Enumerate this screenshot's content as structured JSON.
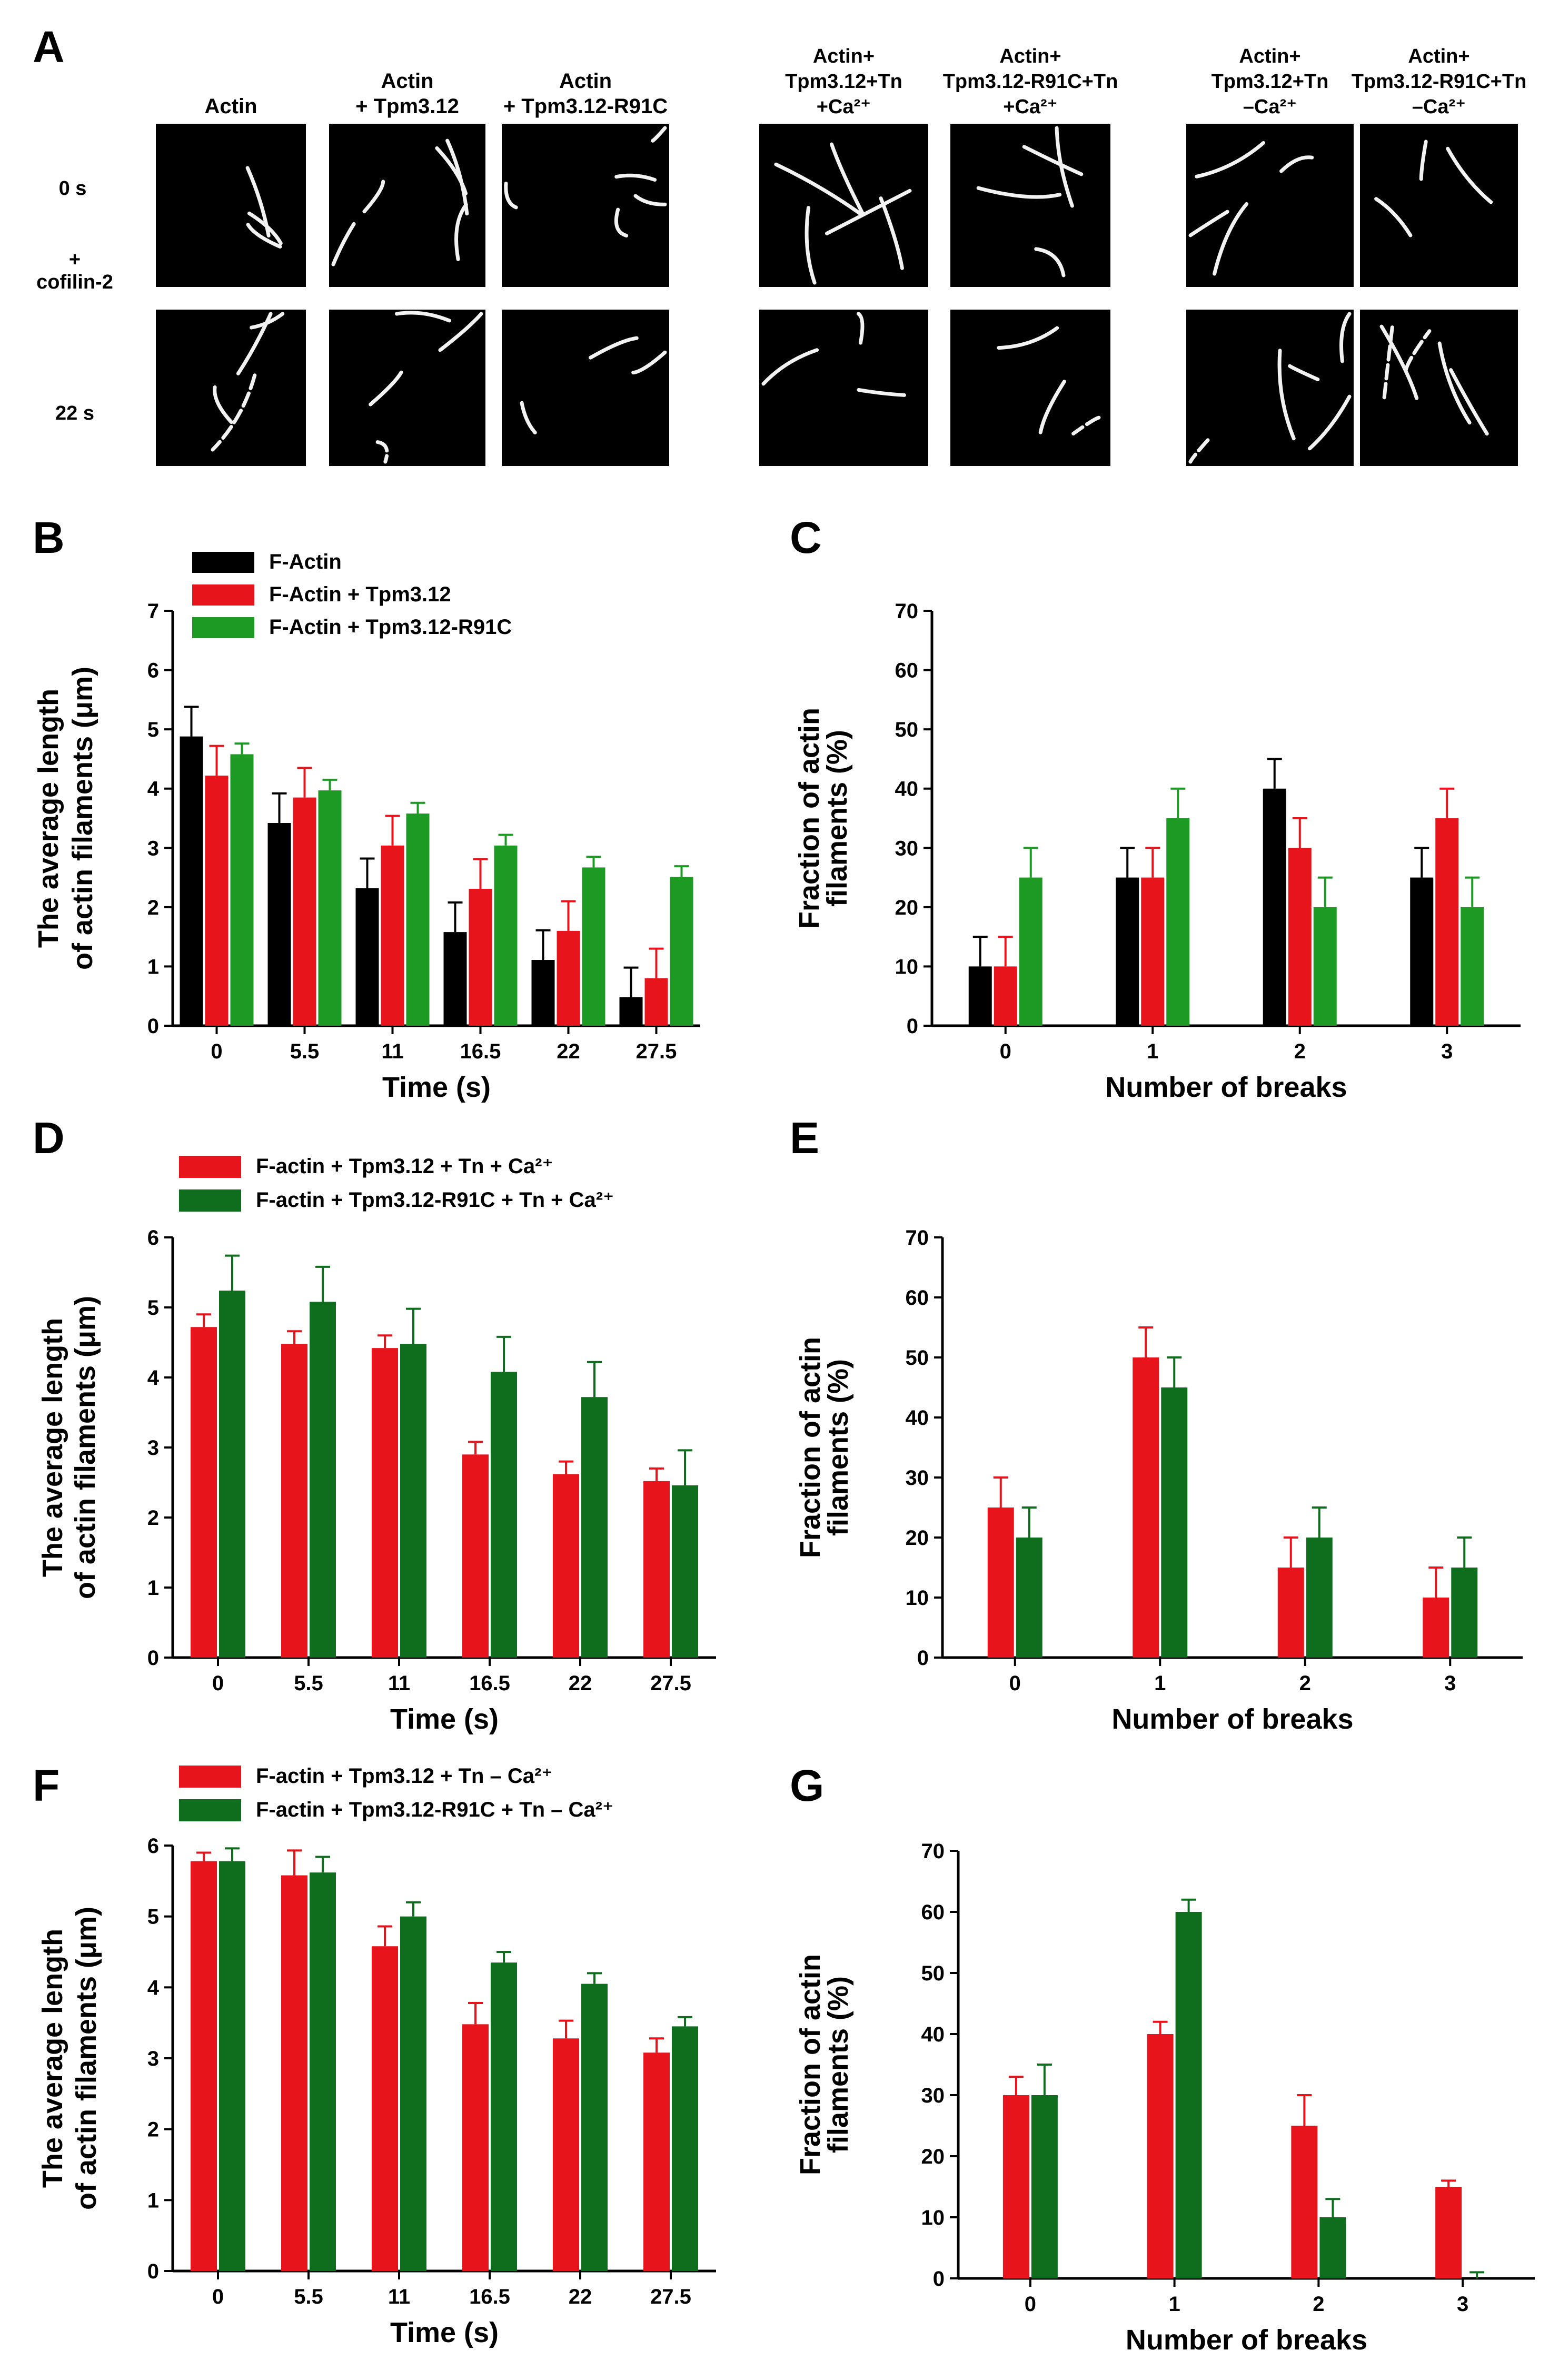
{
  "colors": {
    "black": "#000000",
    "red": "#e8141b",
    "green": "#1d9a24",
    "dark_green": "#0f6e1e"
  },
  "panel_a": {
    "label": "A",
    "columns": [
      [
        "Actin"
      ],
      [
        "Actin",
        "+ Tpm3.12"
      ],
      [
        "Actin",
        "+ Tpm3.12-R91C"
      ],
      [
        "Actin+",
        "Tpm3.12+Tn",
        "+Ca²⁺"
      ],
      [
        "Actin+",
        "Tpm3.12-R91C+Tn",
        "+Ca²⁺"
      ],
      [
        "Actin+",
        "Tpm3.12+Tn",
        "–Ca²⁺"
      ],
      [
        "Actin+",
        "Tpm3.12-R91C+Tn",
        "–Ca²⁺"
      ]
    ],
    "row_labels": {
      "top": "0 s",
      "middle_1": "+",
      "middle_2": "cofilin-2",
      "bottom": "22 s"
    },
    "micrograph_icon": "actin-filament-micrograph"
  },
  "chart_data": [
    {
      "id": "B",
      "panel_label": "B",
      "type": "bar",
      "categories": [
        "0",
        "5.5",
        "11",
        "16.5",
        "22",
        "27.5"
      ],
      "series": [
        {
          "name": "F-Actin",
          "color": "#000000",
          "values": [
            4.88,
            3.42,
            2.32,
            1.58,
            1.11,
            0.48
          ],
          "errors": [
            0.5,
            0.5,
            0.5,
            0.5,
            0.5,
            0.5
          ]
        },
        {
          "name": "F-Actin  + Tpm3.12",
          "color": "#e8141b",
          "values": [
            4.22,
            3.85,
            3.04,
            2.31,
            1.6,
            0.8
          ],
          "errors": [
            0.5,
            0.5,
            0.5,
            0.5,
            0.5,
            0.5
          ]
        },
        {
          "name": "F-Actin  + Tpm3.12-R91C",
          "color": "#1d9a24",
          "values": [
            4.58,
            3.97,
            3.58,
            3.04,
            2.67,
            2.51
          ],
          "errors": [
            0.18,
            0.18,
            0.18,
            0.18,
            0.18,
            0.18
          ]
        }
      ],
      "title": "",
      "xlabel": "Time (s)",
      "ylabel_lines": [
        "The average length",
        "of actin filaments (μm)"
      ],
      "ylim": [
        0,
        7
      ],
      "yticks": [
        "0",
        "1",
        "2",
        "3",
        "4",
        "5",
        "6",
        "7"
      ],
      "legend": "top-left"
    },
    {
      "id": "C",
      "panel_label": "C",
      "type": "bar",
      "categories": [
        "0",
        "1",
        "2",
        "3"
      ],
      "series": [
        {
          "name": "F-Actin",
          "color": "#000000",
          "values": [
            10,
            25,
            40,
            25
          ],
          "errors": [
            5,
            5,
            5,
            5
          ]
        },
        {
          "name": "F-Actin  + Tpm3.12",
          "color": "#e8141b",
          "values": [
            10,
            25,
            30,
            35
          ],
          "errors": [
            5,
            5,
            5,
            5
          ]
        },
        {
          "name": "F-Actin  + Tpm3.12-R91C",
          "color": "#1d9a24",
          "values": [
            25,
            35,
            20,
            20
          ],
          "errors": [
            5,
            5,
            5,
            5
          ]
        }
      ],
      "title": "",
      "xlabel": "Number of breaks",
      "ylabel_lines": [
        "Fraction of actin",
        "filaments (%)"
      ],
      "ylim": [
        0,
        70
      ],
      "yticks": [
        "0",
        "10",
        "20",
        "30",
        "40",
        "50",
        "60",
        "70"
      ],
      "legend": "none"
    },
    {
      "id": "D",
      "panel_label": "D",
      "type": "bar",
      "categories": [
        "0",
        "5.5",
        "11",
        "16.5",
        "22",
        "27.5"
      ],
      "series": [
        {
          "name": "F-actin + Tpm3.12 + Tn + Ca²⁺",
          "color": "#e8141b",
          "values": [
            4.72,
            4.48,
            4.42,
            2.9,
            2.62,
            2.52
          ],
          "errors": [
            0.18,
            0.18,
            0.18,
            0.18,
            0.18,
            0.18
          ]
        },
        {
          "name": "F-actin + Tpm3.12-R91C + Tn + Ca²⁺",
          "color": "#0f6e1e",
          "values": [
            5.24,
            5.08,
            4.48,
            4.08,
            3.72,
            2.46
          ],
          "errors": [
            0.5,
            0.5,
            0.5,
            0.5,
            0.5,
            0.5
          ]
        }
      ],
      "title": "",
      "xlabel": "Time (s)",
      "ylabel_lines": [
        "The average length",
        "of actin filaments (μm)"
      ],
      "ylim": [
        0,
        6
      ],
      "yticks": [
        "0",
        "1",
        "2",
        "3",
        "4",
        "5",
        "6"
      ],
      "legend": "top-left"
    },
    {
      "id": "E",
      "panel_label": "E",
      "type": "bar",
      "categories": [
        "0",
        "1",
        "2",
        "3"
      ],
      "series": [
        {
          "name": "F-actin + Tpm3.12 + Tn + Ca²⁺",
          "color": "#e8141b",
          "values": [
            25,
            50,
            15,
            10
          ],
          "errors": [
            5,
            5,
            5,
            5
          ]
        },
        {
          "name": "F-actin + Tpm3.12-R91C + Tn + Ca²⁺",
          "color": "#0f6e1e",
          "values": [
            20,
            45,
            20,
            15
          ],
          "errors": [
            5,
            5,
            5,
            5
          ]
        }
      ],
      "title": "",
      "xlabel": "Number of breaks",
      "ylabel_lines": [
        "Fraction of actin",
        "filaments (%)"
      ],
      "ylim": [
        0,
        70
      ],
      "yticks": [
        "0",
        "10",
        "20",
        "30",
        "40",
        "50",
        "60",
        "70"
      ],
      "legend": "none"
    },
    {
      "id": "F",
      "panel_label": "F",
      "type": "bar",
      "categories": [
        "0",
        "5.5",
        "11",
        "16.5",
        "22",
        "27.5"
      ],
      "series": [
        {
          "name": "F-actin + Tpm3.12 + Tn – Ca²⁺",
          "color": "#e8141b",
          "values": [
            5.78,
            5.58,
            4.58,
            3.48,
            3.28,
            3.08
          ],
          "errors": [
            0.12,
            0.35,
            0.28,
            0.3,
            0.25,
            0.2
          ]
        },
        {
          "name": "F-actin + Tpm3.12-R91C + Tn – Ca²⁺",
          "color": "#0f6e1e",
          "values": [
            5.78,
            5.62,
            5.0,
            4.35,
            4.05,
            3.45
          ],
          "errors": [
            0.18,
            0.22,
            0.2,
            0.15,
            0.15,
            0.13
          ]
        }
      ],
      "title": "",
      "xlabel": "Time (s)",
      "ylabel_lines": [
        "The average length",
        "of actin filaments (μm)"
      ],
      "ylim": [
        0,
        6
      ],
      "yticks": [
        "0",
        "1",
        "2",
        "3",
        "4",
        "5",
        "6"
      ],
      "legend": "top-left"
    },
    {
      "id": "G",
      "panel_label": "G",
      "type": "bar",
      "categories": [
        "0",
        "1",
        "2",
        "3"
      ],
      "series": [
        {
          "name": "F-actin + Tpm3.12 + Tn – Ca²⁺",
          "color": "#e8141b",
          "values": [
            30,
            40,
            25,
            15
          ],
          "errors": [
            3,
            2,
            5,
            1
          ]
        },
        {
          "name": "F-actin + Tpm3.12-R91C + Tn – Ca²⁺",
          "color": "#0f6e1e",
          "values": [
            30,
            60,
            10,
            0
          ],
          "errors": [
            5,
            2,
            3,
            1
          ]
        }
      ],
      "title": "",
      "xlabel": "Number of breaks",
      "ylabel_lines": [
        "Fraction of actin",
        "filaments (%)"
      ],
      "ylim": [
        0,
        70
      ],
      "yticks": [
        "0",
        "10",
        "20",
        "30",
        "40",
        "50",
        "60",
        "70"
      ],
      "legend": "none"
    }
  ]
}
